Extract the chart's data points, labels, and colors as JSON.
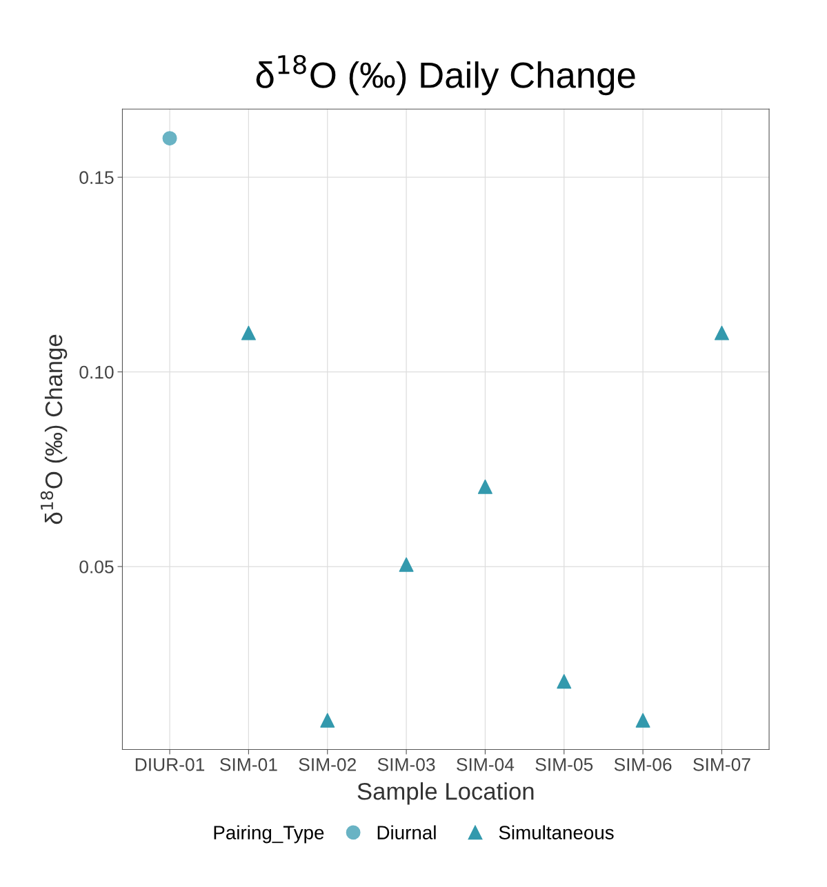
{
  "chart_data": {
    "type": "scatter",
    "title": "δ$^{18}$O (‰) Daily Change",
    "xlabel": "Sample Location",
    "ylabel": "δ$^{18}$O (‰) Change",
    "legend_title": "Pairing_Type",
    "categories": [
      "DIUR-01",
      "SIM-01",
      "SIM-02",
      "SIM-03",
      "SIM-04",
      "SIM-05",
      "SIM-06",
      "SIM-07"
    ],
    "series": [
      {
        "name": "Diurnal",
        "color": "#69b3c4",
        "marker": "circle",
        "values": [
          0.16,
          null,
          null,
          null,
          null,
          null,
          null,
          null
        ]
      },
      {
        "name": "Simultaneous",
        "color": "#3399ad",
        "marker": "triangle",
        "values": [
          null,
          0.11,
          0.0105,
          0.0505,
          0.0705,
          0.0205,
          0.0105,
          0.11
        ]
      }
    ],
    "ylim": [
      0.003,
      0.1675
    ],
    "yticks": [
      0.05,
      {
        "value": 0.1,
        "label": "0.10"
      },
      0.15
    ],
    "grid": true,
    "legend": "bottom"
  }
}
